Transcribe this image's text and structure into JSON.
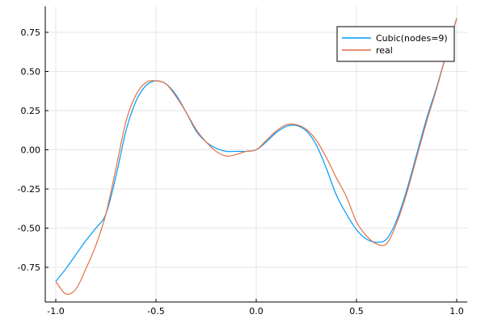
{
  "chart_data": {
    "type": "line",
    "title": "",
    "xlabel": "",
    "ylabel": "",
    "xlim": [
      -1.0,
      1.0
    ],
    "ylim": [
      -0.95,
      0.88
    ],
    "grid": true,
    "legend_position": "top-right",
    "x_ticks": [
      -1.0,
      -0.5,
      0.0,
      0.5,
      1.0
    ],
    "x_tick_labels": [
      "-1.0",
      "-0.5",
      "0.0",
      "0.5",
      "1.0"
    ],
    "y_ticks": [
      0.75,
      0.5,
      0.25,
      0.0,
      -0.25,
      -0.5,
      -0.75
    ],
    "y_tick_labels": [
      "0.75",
      "0.50",
      "0.25",
      "0.00",
      "-0.25",
      "-0.50",
      "-0.75"
    ],
    "series": [
      {
        "name": "Cubic(nodes=9)",
        "color": "#009AFA",
        "x": [
          -1.0,
          -0.95,
          -0.9,
          -0.85,
          -0.8,
          -0.75,
          -0.7,
          -0.65,
          -0.6,
          -0.55,
          -0.5,
          -0.45,
          -0.4,
          -0.35,
          -0.3,
          -0.25,
          -0.2,
          -0.15,
          -0.1,
          -0.05,
          0.0,
          0.05,
          0.1,
          0.15,
          0.2,
          0.25,
          0.3,
          0.35,
          0.4,
          0.45,
          0.5,
          0.55,
          0.6,
          0.65,
          0.7,
          0.75,
          0.8,
          0.85,
          0.9,
          0.95,
          1.0
        ],
        "y": [
          -0.84,
          -0.76,
          -0.67,
          -0.58,
          -0.5,
          -0.41,
          -0.17,
          0.12,
          0.31,
          0.41,
          0.44,
          0.42,
          0.35,
          0.24,
          0.12,
          0.05,
          0.01,
          -0.01,
          -0.01,
          -0.01,
          0.0,
          0.05,
          0.11,
          0.15,
          0.155,
          0.12,
          0.03,
          -0.12,
          -0.29,
          -0.41,
          -0.51,
          -0.57,
          -0.59,
          -0.57,
          -0.45,
          -0.26,
          -0.03,
          0.2,
          0.4,
          0.62,
          0.84
        ]
      },
      {
        "name": "real",
        "color": "#E26F46",
        "x": [
          -1.0,
          -0.95,
          -0.9,
          -0.85,
          -0.8,
          -0.75,
          -0.7,
          -0.65,
          -0.6,
          -0.55,
          -0.5,
          -0.45,
          -0.4,
          -0.35,
          -0.3,
          -0.25,
          -0.2,
          -0.15,
          -0.1,
          -0.05,
          0.0,
          0.05,
          0.1,
          0.15,
          0.2,
          0.25,
          0.3,
          0.35,
          0.4,
          0.45,
          0.5,
          0.55,
          0.6,
          0.65,
          0.7,
          0.75,
          0.8,
          0.85,
          0.9,
          0.95,
          1.0
        ],
        "y": [
          -0.84,
          -0.92,
          -0.89,
          -0.76,
          -0.61,
          -0.41,
          -0.12,
          0.18,
          0.35,
          0.43,
          0.44,
          0.42,
          0.34,
          0.24,
          0.13,
          0.05,
          -0.01,
          -0.04,
          -0.03,
          -0.01,
          0.0,
          0.06,
          0.12,
          0.16,
          0.16,
          0.13,
          0.06,
          -0.05,
          -0.18,
          -0.3,
          -0.46,
          -0.55,
          -0.6,
          -0.6,
          -0.47,
          -0.28,
          -0.05,
          0.18,
          0.39,
          0.62,
          0.84
        ]
      }
    ]
  }
}
